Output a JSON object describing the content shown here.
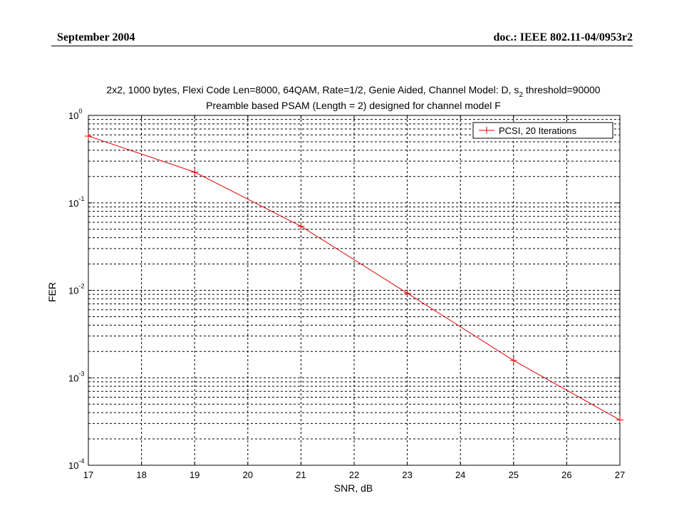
{
  "header": {
    "left": "September 2004",
    "right": "doc.: IEEE 802.11-04/0953r2"
  },
  "chart_data": {
    "type": "line",
    "title_line1_main": "2x2, 1000 bytes, Flexi Code Len=8000, 64QAM, Rate=1/2, Genie Aided, Channel Model: D, s",
    "title_line1_sub": "2",
    "title_line1_tail": " threshold=90000",
    "title_line2": "Preamble based PSAM (Length = 2) designed for channel model F",
    "xlabel": "SNR, dB",
    "ylabel": "FER",
    "xlim": [
      17,
      27
    ],
    "ylim": [
      0.0001,
      1
    ],
    "yscale": "log",
    "grid": true,
    "legend_position": "top-right",
    "x_ticks": [
      "17",
      "18",
      "19",
      "20",
      "21",
      "22",
      "23",
      "24",
      "25",
      "26",
      "27"
    ],
    "y_ticks": [
      {
        "base": "10",
        "exp": "0"
      },
      {
        "base": "10",
        "exp": "-1"
      },
      {
        "base": "10",
        "exp": "-2"
      },
      {
        "base": "10",
        "exp": "-3"
      },
      {
        "base": "10",
        "exp": "-4"
      }
    ],
    "series": [
      {
        "name": "PCSI, 20 Iterations",
        "color": "#e00000",
        "marker": "plus",
        "x": [
          17,
          19,
          21,
          23,
          25,
          27
        ],
        "y": [
          0.58,
          0.225,
          0.054,
          0.0093,
          0.00158,
          0.00033
        ]
      }
    ]
  }
}
